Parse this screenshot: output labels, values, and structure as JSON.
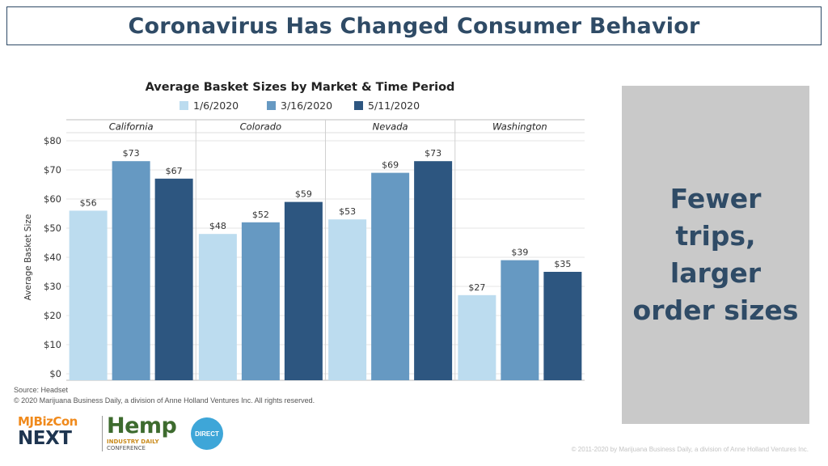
{
  "header": {
    "title": "Coronavirus Has Changed Consumer Behavior"
  },
  "chart_data": {
    "type": "bar",
    "title": "Average Basket Sizes by Market & Time Period",
    "ylabel": "Average Basket Size",
    "xlabel": "",
    "ylim": [
      0,
      80
    ],
    "yticks": [
      "$0",
      "$10",
      "$20",
      "$30",
      "$40",
      "$50",
      "$60",
      "$70",
      "$80"
    ],
    "legend_position": "top",
    "grid": true,
    "categories": [
      "California",
      "Colorado",
      "Nevada",
      "Washington"
    ],
    "series": [
      {
        "name": "1/6/2020",
        "color": "#bcdcef",
        "values": [
          56,
          48,
          53,
          27
        ],
        "labels": [
          "$56",
          "$48",
          "$53",
          "$27"
        ]
      },
      {
        "name": "3/16/2020",
        "color": "#6699c2",
        "values": [
          73,
          52,
          69,
          39
        ],
        "labels": [
          "$73",
          "$52",
          "$69",
          "$39"
        ]
      },
      {
        "name": "5/11/2020",
        "color": "#2d5680",
        "values": [
          67,
          59,
          73,
          35
        ],
        "labels": [
          "$67",
          "$59",
          "$73",
          "$35"
        ]
      }
    ]
  },
  "source": {
    "line1": "Source: Headset",
    "line2": "© 2020 Marijuana Business Daily, a division of Anne Holland Ventures Inc. All rights reserved."
  },
  "callout": {
    "text": "Fewer trips, larger order sizes"
  },
  "logos": {
    "mjbizcon_top": "MJBizCon",
    "mjbizcon_bottom": "NEXT",
    "hemp_title": "Hemp",
    "hemp_sub": "INDUSTRY DAILY",
    "hemp_conf": "CONFERENCE",
    "direct": "DIRECT"
  },
  "footer": {
    "copyright": "© 2011-2020 by Marijuana Business Daily, a division of Anne Holland Ventures Inc."
  }
}
